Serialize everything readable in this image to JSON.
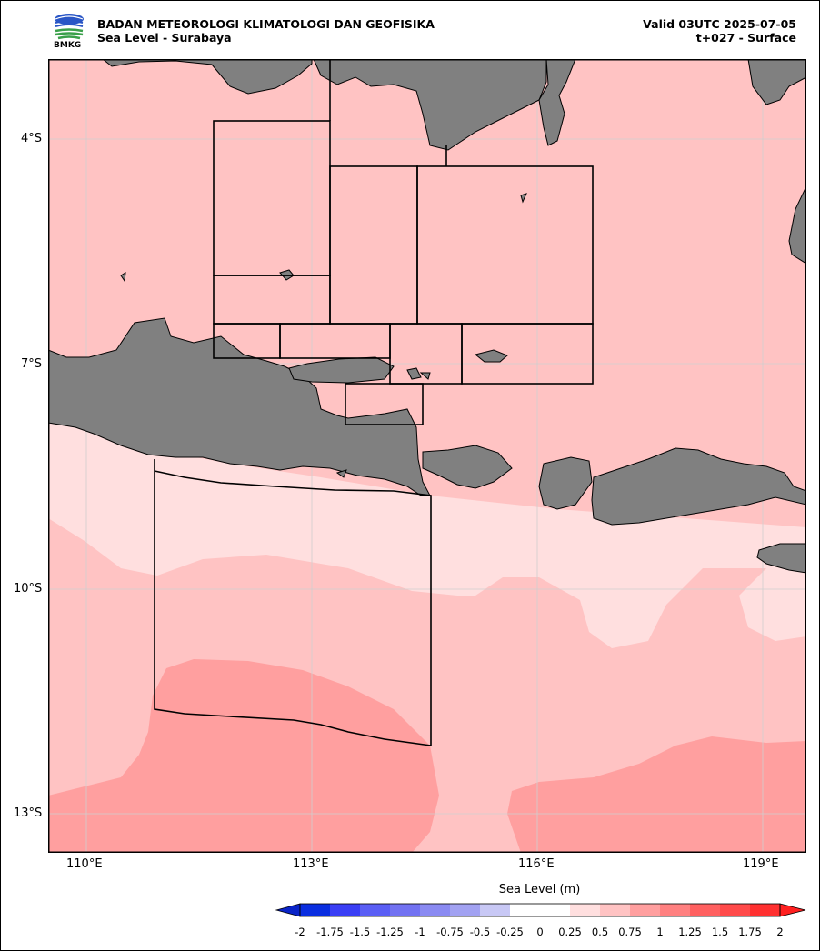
{
  "header": {
    "agency": "BADAN METEOROLOGI KLIMATOLOGI DAN GEOFISIKA",
    "product": "Sea Level - Surabaya",
    "valid": "Valid 03UTC 2025-07-05",
    "forecast": "t+027 - Surface",
    "logo_text": "BMKG"
  },
  "map": {
    "lon_range": [
      109.5,
      119.6
    ],
    "lat_range": [
      -3.0,
      -13.5
    ],
    "x_ticks": [
      "110°E",
      "113°E",
      "116°E",
      "119°E"
    ],
    "y_ticks": [
      "4°S",
      "7°S",
      "10°S",
      "13°S"
    ],
    "land_color": "#808080",
    "contour_colors": {
      "0.25-0.5": "#ffdfdf",
      "0.5-0.75": "#ffc3c3",
      "0.75-1": "#ff9f9f"
    }
  },
  "colorbar": {
    "label": "Sea Level (m)",
    "ticks": [
      "-2",
      "-1.75",
      "-1.5",
      "-1.25",
      "-1",
      "-0.75",
      "-0.5",
      "-0.25",
      "0",
      "0.25",
      "0.5",
      "0.75",
      "1",
      "1.25",
      "1.5",
      "1.75",
      "2"
    ],
    "colors": [
      "#0a2ee0",
      "#3a3ef5",
      "#5a5ef5",
      "#7272f2",
      "#8a8af2",
      "#a2a2f2",
      "#c8c8f5",
      "#ffffff",
      "#ffffff",
      "#ffdfdf",
      "#ffc3c3",
      "#ff9f9f",
      "#ff8080",
      "#ff6060",
      "#ff4a4a",
      "#ff3030"
    ],
    "under_color": "#0a24c8",
    "over_color": "#ff2020"
  }
}
